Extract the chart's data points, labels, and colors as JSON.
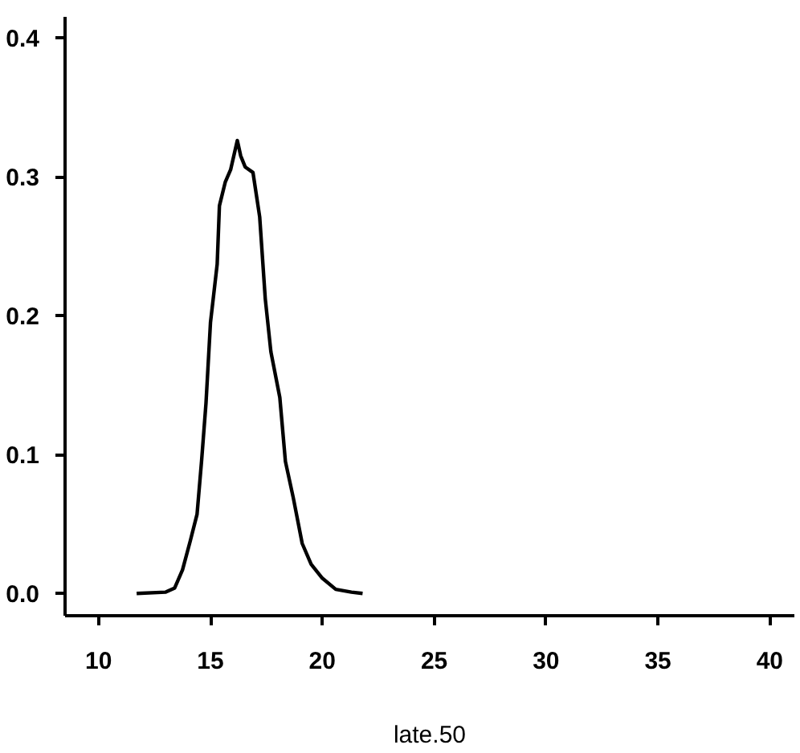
{
  "chart_data": {
    "type": "line",
    "xlabel": "late.50",
    "x": [
      11.7,
      13.0,
      13.4,
      13.75,
      14.1,
      14.4,
      14.6,
      14.8,
      15.0,
      15.15,
      15.3,
      15.4,
      15.66,
      15.9,
      16.2,
      16.35,
      16.55,
      16.9,
      17.2,
      17.45,
      17.7,
      18.1,
      18.35,
      18.7,
      19.1,
      19.5,
      20.0,
      20.6,
      21.3,
      21.8
    ],
    "series": [
      {
        "color": "#000000",
        "values": [
          0,
          0.001,
          0.004,
          0.017,
          0.038,
          0.057,
          0.095,
          0.137,
          0.195,
          0.216,
          0.237,
          0.279,
          0.296,
          0.305,
          0.326,
          0.315,
          0.307,
          0.303,
          0.271,
          0.212,
          0.174,
          0.141,
          0.095,
          0.069,
          0.036,
          0.021,
          0.011,
          0.003,
          0.001,
          0
        ]
      }
    ],
    "xlim": [
      8.5,
      41.1
    ],
    "ylim": [
      -0.016,
      0.415
    ],
    "xticks": [
      10,
      15,
      20,
      25,
      30,
      35,
      40
    ],
    "yticks": [
      {
        "value": 0,
        "label": "0.0"
      },
      {
        "value": 0.1,
        "label": "0.1"
      },
      {
        "value": 0.2,
        "label": "0.2"
      },
      {
        "value": 0.3,
        "label": "0.3"
      },
      {
        "value": 0.4,
        "label": "0.4"
      }
    ],
    "grid": false,
    "marker": "none",
    "line_style": "solid"
  }
}
